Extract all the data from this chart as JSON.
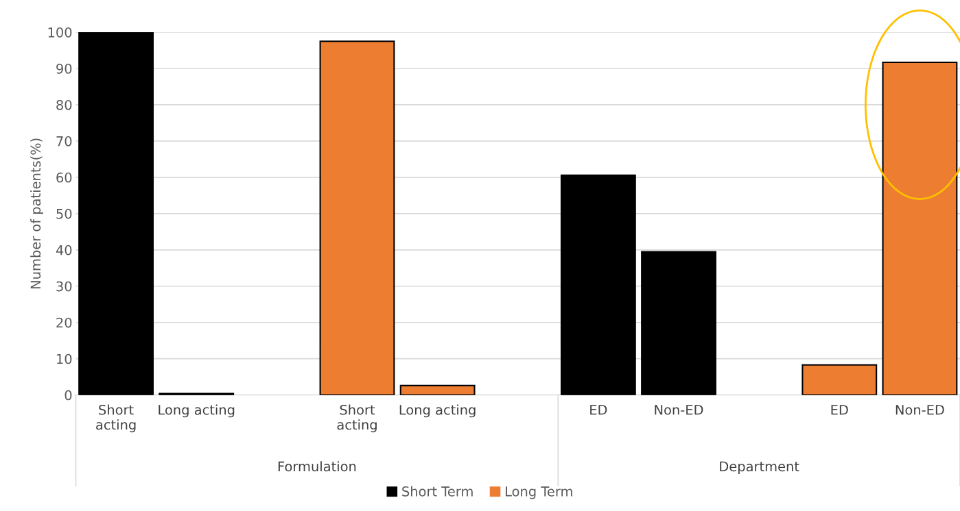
{
  "chart_data": {
    "type": "bar",
    "ylabel": "Number of patients(%)",
    "categories": [
      "Short\nacting",
      "Long acting",
      null,
      "Short\nacting",
      "Long acting",
      null,
      "ED",
      "Non-ED",
      null,
      "ED",
      "Non-ED"
    ],
    "series": [
      {
        "name": "Short Term",
        "color": "#000000",
        "values": [
          99.8,
          0.4,
          null,
          null,
          null,
          null,
          60.6,
          39.5,
          null,
          null,
          null
        ]
      },
      {
        "name": "Long Term",
        "color": "#ed7d31",
        "values": [
          null,
          null,
          null,
          97.5,
          2.6,
          null,
          null,
          null,
          null,
          8.3,
          91.7
        ]
      }
    ],
    "ylim": [
      0,
      100
    ],
    "yticks": [
      0,
      10,
      20,
      30,
      40,
      50,
      60,
      70,
      80,
      90,
      100
    ],
    "annotations": [
      "Formulation",
      "Department"
    ],
    "grid": "y",
    "legend": "bottom"
  }
}
